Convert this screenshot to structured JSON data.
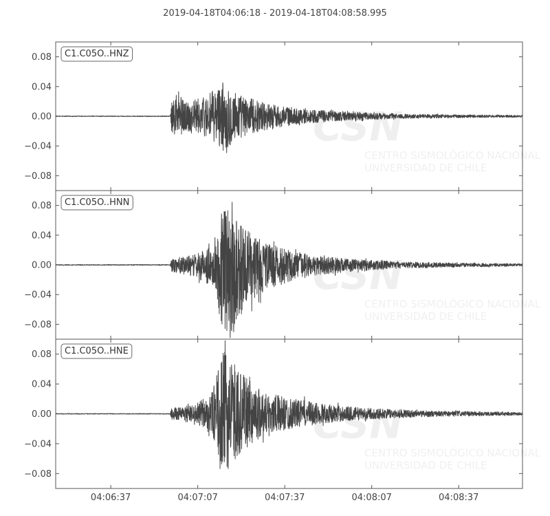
{
  "title": "2019-04-18T04:06:18  -  2019-04-18T04:08:58.995",
  "watermark": {
    "logo": "CSN",
    "line1": "CENTRO SISMOLÓGICO NACIONAL",
    "line2": "UNIVERSIDAD DE CHILE"
  },
  "colors": {
    "trace": "#444444",
    "frame": "#555555",
    "label_border": "#666666"
  },
  "chart_data": [
    {
      "type": "line",
      "name": "C1.C05O..HNZ",
      "x_range_s": [
        0,
        161
      ],
      "ylim": [
        -0.1,
        0.1
      ],
      "yticks": [
        0.08,
        0.04,
        0.0,
        -0.04,
        -0.08
      ],
      "ytick_labels": [
        "0.08",
        "0.04",
        "0.00",
        "−0.04",
        "−0.08"
      ],
      "envelope": [
        [
          0,
          0.0005
        ],
        [
          39.5,
          0.0005
        ],
        [
          40,
          0.018
        ],
        [
          42,
          0.034
        ],
        [
          44,
          0.022
        ],
        [
          50,
          0.024
        ],
        [
          55,
          0.036
        ],
        [
          58,
          0.045
        ],
        [
          61,
          0.038
        ],
        [
          65,
          0.026
        ],
        [
          75,
          0.016
        ],
        [
          85,
          0.01
        ],
        [
          100,
          0.006
        ],
        [
          120,
          0.003
        ],
        [
          140,
          0.002
        ],
        [
          161,
          0.0015
        ]
      ],
      "neg_scale": 1.0
    },
    {
      "type": "line",
      "name": "C1.C05O..HNN",
      "x_range_s": [
        0,
        161
      ],
      "ylim": [
        -0.1,
        0.1
      ],
      "yticks": [
        0.08,
        0.04,
        0.0,
        -0.04,
        -0.08
      ],
      "ytick_labels": [
        "0.08",
        "0.04",
        "0.00",
        "−0.04",
        "−0.08"
      ],
      "envelope": [
        [
          0,
          0.0005
        ],
        [
          39.5,
          0.0005
        ],
        [
          40,
          0.008
        ],
        [
          43,
          0.01
        ],
        [
          48,
          0.014
        ],
        [
          54,
          0.025
        ],
        [
          58,
          0.08
        ],
        [
          61,
          0.085
        ],
        [
          65,
          0.05
        ],
        [
          70,
          0.035
        ],
        [
          80,
          0.02
        ],
        [
          90,
          0.012
        ],
        [
          105,
          0.007
        ],
        [
          120,
          0.004
        ],
        [
          140,
          0.0025
        ],
        [
          161,
          0.0015
        ]
      ],
      "neg_scale": 1.15
    },
    {
      "type": "line",
      "name": "C1.C05O..HNE",
      "x_range_s": [
        0,
        161
      ],
      "ylim": [
        -0.1,
        0.1
      ],
      "yticks": [
        0.08,
        0.04,
        0.0,
        -0.04,
        -0.08
      ],
      "ytick_labels": [
        "0.08",
        "0.04",
        "0.00",
        "−0.04",
        "−0.08"
      ],
      "envelope": [
        [
          0,
          0.0005
        ],
        [
          39.5,
          0.0005
        ],
        [
          40,
          0.008
        ],
        [
          43,
          0.009
        ],
        [
          48,
          0.012
        ],
        [
          54,
          0.03
        ],
        [
          58,
          0.085
        ],
        [
          61,
          0.07
        ],
        [
          65,
          0.05
        ],
        [
          72,
          0.03
        ],
        [
          82,
          0.02
        ],
        [
          95,
          0.012
        ],
        [
          110,
          0.007
        ],
        [
          130,
          0.004
        ],
        [
          161,
          0.002
        ]
      ],
      "neg_scale": 0.95
    }
  ],
  "xaxis": {
    "tick_seconds": [
      19,
      49,
      79,
      109,
      139
    ],
    "tick_labels": [
      "04:06:37",
      "04:07:07",
      "04:07:37",
      "04:08:07",
      "04:08:37"
    ]
  }
}
